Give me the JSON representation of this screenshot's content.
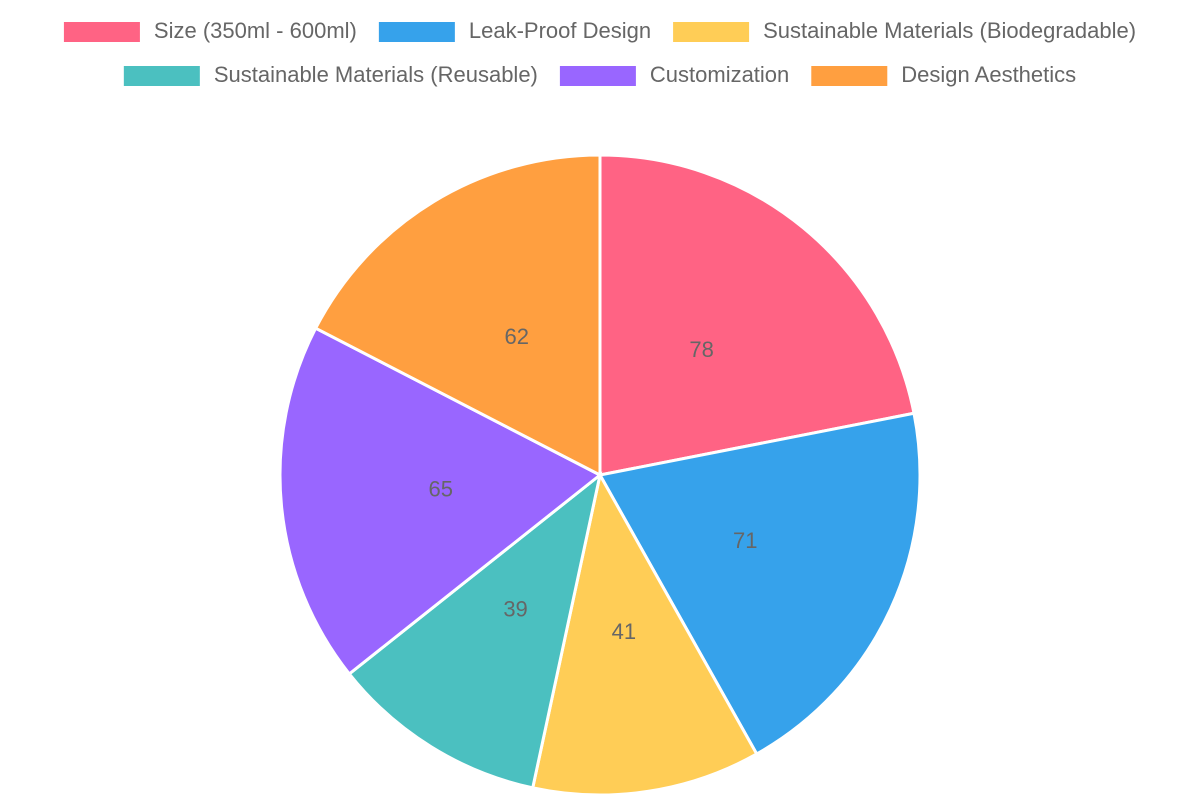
{
  "chart_data": {
    "type": "pie",
    "categories": [
      "Size (350ml - 600ml)",
      "Leak-Proof Design",
      "Sustainable Materials (Biodegradable)",
      "Sustainable Materials (Reusable)",
      "Customization",
      "Design Aesthetics"
    ],
    "values": [
      78,
      71,
      41,
      39,
      65,
      62
    ],
    "colors": [
      "#ff6384",
      "#36a2eb",
      "#ffcd56",
      "#4bc0c0",
      "#9966ff",
      "#ff9f40"
    ],
    "legend": "top"
  }
}
